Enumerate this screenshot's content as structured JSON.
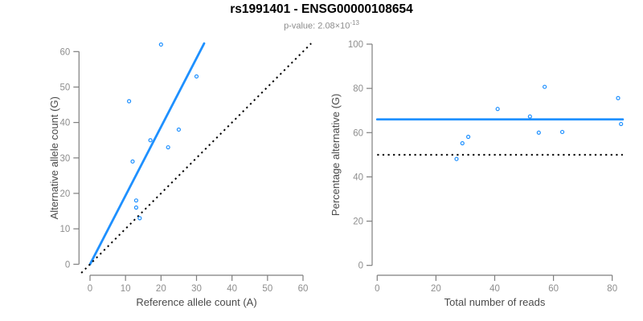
{
  "header": {
    "title": "rs1991401 - ENSG00000108654",
    "subtitle_base": "p-value: 2.08×10",
    "subtitle_exponent": "-13"
  },
  "colors": {
    "accent_blue": "#1E90FF",
    "reference_black": "#000000",
    "axis_gray": "#7E7E7E",
    "tick_text_gray": "#8E8E8E",
    "axis_label_gray": "#4A4A4A",
    "subtitle_gray": "#8C8C8C",
    "background": "#FFFFFF"
  },
  "chart_data": [
    {
      "type": "scatter",
      "panel": "allele-counts",
      "xlabel": "Reference allele count (A)",
      "ylabel": "Alternative allele count (G)",
      "xlim": [
        0,
        60
      ],
      "ylim": [
        0,
        60
      ],
      "xticks": [
        0,
        10,
        20,
        30,
        40,
        50,
        60
      ],
      "yticks": [
        0,
        10,
        20,
        30,
        40,
        50,
        60
      ],
      "grid": false,
      "legend": null,
      "point_color": "#1E90FF",
      "points": [
        [
          11,
          46
        ],
        [
          12,
          29
        ],
        [
          13,
          16
        ],
        [
          13,
          18
        ],
        [
          14,
          13
        ],
        [
          17,
          35
        ],
        [
          20,
          62
        ],
        [
          22,
          33
        ],
        [
          25,
          38
        ],
        [
          30,
          53
        ]
      ],
      "lines": [
        {
          "role": "fit-line",
          "kind": "slope",
          "slope": 1.938,
          "intercept": 0,
          "x_start": 0,
          "style": "solid",
          "color": "#1E90FF"
        },
        {
          "role": "identity-line",
          "kind": "slope",
          "slope": 1,
          "intercept": 0,
          "style": "dotted",
          "color": "#000000"
        }
      ]
    },
    {
      "type": "scatter",
      "panel": "percentage-vs-coverage",
      "xlabel": "Total number of reads",
      "ylabel": "Percentage alternative (G)",
      "xlim": [
        0,
        80
      ],
      "ylim": [
        0,
        100
      ],
      "xticks": [
        0,
        20,
        40,
        60,
        80
      ],
      "yticks": [
        0,
        20,
        40,
        60,
        80,
        100
      ],
      "grid": false,
      "legend": null,
      "point_color": "#1E90FF",
      "points": [
        [
          27,
          48.1
        ],
        [
          29,
          55.2
        ],
        [
          31,
          58.1
        ],
        [
          41,
          70.7
        ],
        [
          52,
          67.3
        ],
        [
          55,
          60.0
        ],
        [
          57,
          80.7
        ],
        [
          63,
          60.3
        ],
        [
          82,
          75.6
        ],
        [
          83,
          63.9
        ]
      ],
      "lines": [
        {
          "role": "mean-line",
          "kind": "horizontal",
          "y": 66,
          "x_start": 0,
          "style": "solid",
          "color": "#1E90FF"
        },
        {
          "role": "null-line",
          "kind": "horizontal",
          "y": 50,
          "x_start": 0,
          "style": "dotted",
          "color": "#000000"
        }
      ]
    }
  ]
}
